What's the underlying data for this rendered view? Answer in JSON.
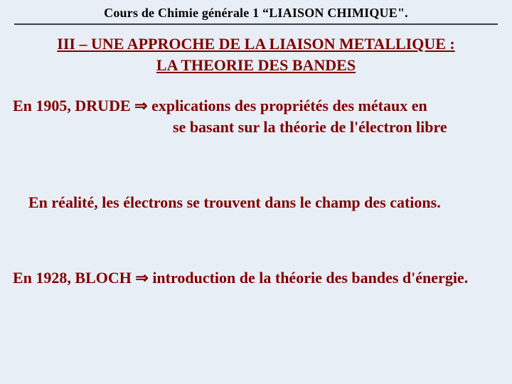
{
  "colors": {
    "background": "#e8eef5",
    "header_text": "#000000",
    "body_text": "#800000",
    "divider": "#404040"
  },
  "typography": {
    "font_family": "Times New Roman",
    "header_size_pt": 14,
    "body_size_pt": 16,
    "weight": "bold"
  },
  "header": {
    "course_title": "Cours de Chimie générale 1 “LIAISON CHIMIQUE\"."
  },
  "section": {
    "title_line1": "III – UNE APPROCHE DE LA LIAISON METALLIQUE :",
    "title_line2": "LA THEORIE DES BANDES"
  },
  "body": {
    "p1_prefix": "En 1905, DRUDE ",
    "arrow": "⇒",
    "p1_line1_rest": " explications des propriétés des métaux en",
    "p1_line2": "se basant sur la théorie de l'électron libre",
    "p2": "En réalité, les électrons se trouvent dans le champ des cations.",
    "p3_prefix": "En 1928, BLOCH ",
    "p3_rest": " introduction de la théorie des bandes d'énergie."
  }
}
